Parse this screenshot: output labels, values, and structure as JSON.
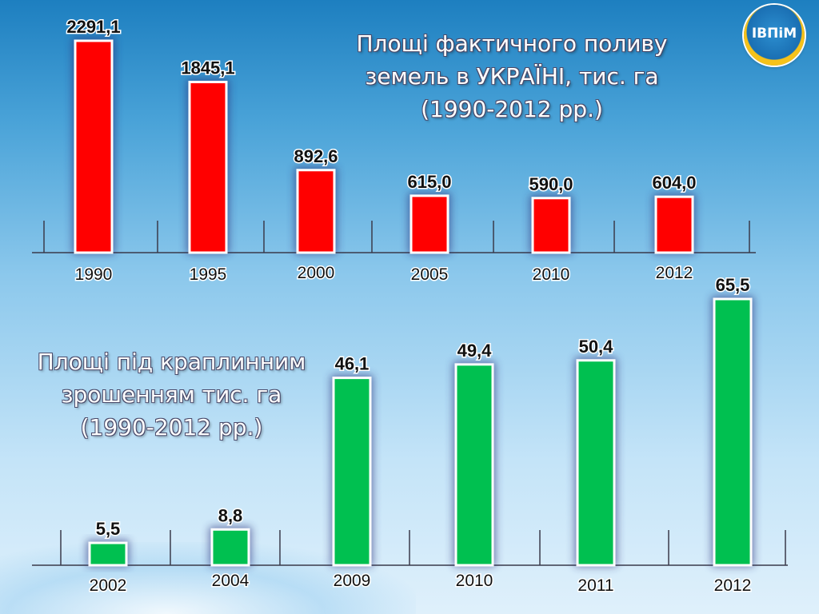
{
  "logo": {
    "text": "ІВПіМ"
  },
  "chart_data": [
    {
      "type": "bar",
      "title": "Площі фактичного поливу земель в УКРАЇНІ, тис. га (1990-2012 рр.)",
      "title_lines": [
        "Площі фактичного поливу",
        "земель в УКРАЇНІ, тис. га",
        "(1990-2012 рр.)"
      ],
      "categories": [
        "1990",
        "1995",
        "2000",
        "2005",
        "2010",
        "2012"
      ],
      "values": [
        2291.1,
        1845.1,
        892.6,
        615.0,
        590.0,
        604.0
      ],
      "value_labels": [
        "2291,1",
        "1845,1",
        "892,6",
        "615,0",
        "590,0",
        "604,0"
      ],
      "color": "#ff0000",
      "xlabel": "",
      "ylabel": "",
      "grid": false,
      "legend": "none"
    },
    {
      "type": "bar",
      "title": "Площі під краплинним зрошенням тис. га (1990-2012 рр.)",
      "title_lines": [
        "Площі під краплинним",
        "зрошенням тис. га",
        "(1990-2012 рр.)"
      ],
      "categories": [
        "2002",
        "2004",
        "2009",
        "2010",
        "2011",
        "2012"
      ],
      "values": [
        5.5,
        8.8,
        46.1,
        49.4,
        50.4,
        65.5
      ],
      "value_labels": [
        "5,5",
        "8,8",
        "46,1",
        "49,4",
        "50,4",
        "65,5"
      ],
      "color": "#00c050",
      "xlabel": "",
      "ylabel": "",
      "grid": false,
      "legend": "none"
    }
  ]
}
